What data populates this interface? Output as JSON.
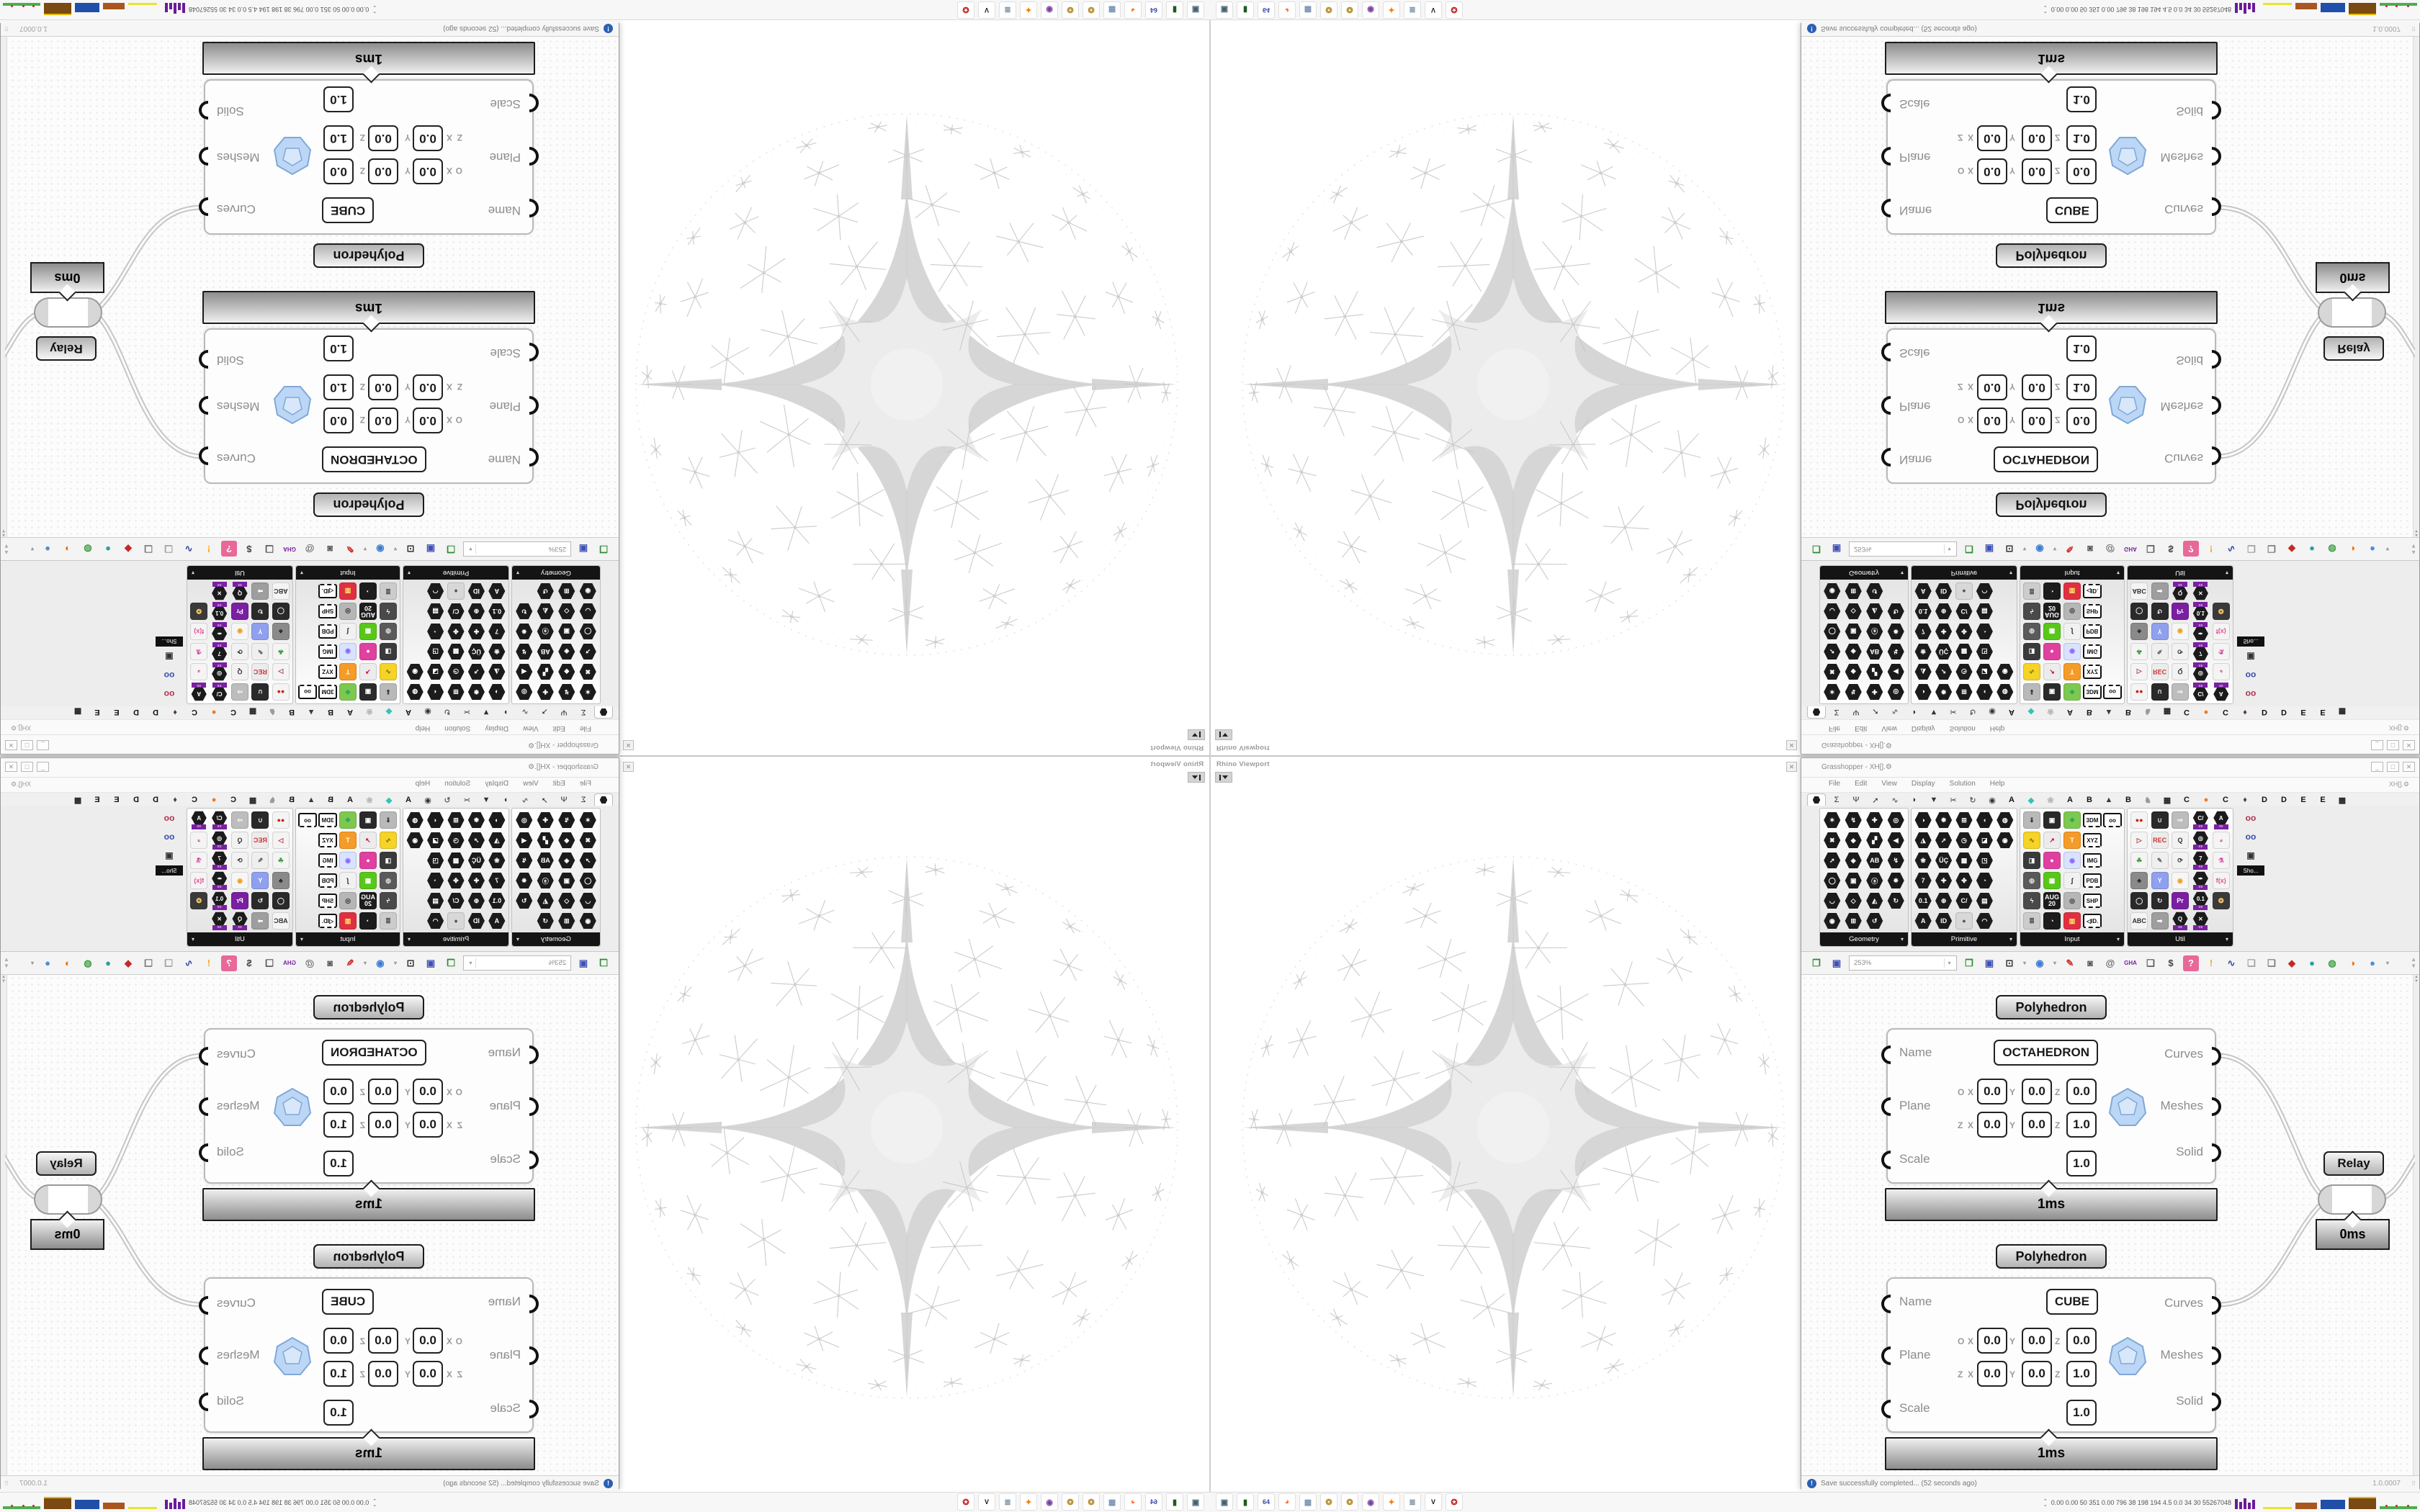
{
  "rhino": {
    "viewport_label": "Rhino Viewport",
    "close_glyph": "✕"
  },
  "gh": {
    "title": "Grasshopper - XH[].⚙",
    "doc_label": "XH[].⚙",
    "menu": [
      "File",
      "Edit",
      "View",
      "Display",
      "Solution",
      "Help"
    ],
    "window_buttons": [
      "_",
      "□",
      "✕"
    ],
    "tabs_icons": [
      "HEX",
      "Σ",
      "Ψ",
      "➚",
      "∿",
      "◗",
      "▼",
      "✂",
      "↻",
      "◉"
    ],
    "tabs_letters": [
      {
        "label": "A",
        "color": "#111111"
      },
      {
        "label": "◆",
        "color": "#35c4b5"
      },
      {
        "label": "❀",
        "color": "#b5b5b5"
      },
      {
        "label": "A",
        "color": "#111111"
      },
      {
        "label": "B",
        "color": "#111111"
      },
      {
        "label": "▲",
        "color": "#3a3a3a"
      },
      {
        "label": "B",
        "color": "#111111"
      },
      {
        "label": "♞",
        "color": "#9a9a9a"
      },
      {
        "label": "▦",
        "color": "#222222"
      },
      {
        "label": "C",
        "color": "#111111"
      },
      {
        "label": "●",
        "color": "#f07820"
      },
      {
        "label": "C",
        "color": "#111111"
      },
      {
        "label": "♦",
        "color": "#5a3b2e"
      },
      {
        "label": "D",
        "color": "#111111"
      },
      {
        "label": "D",
        "color": "#111111"
      },
      {
        "label": "E",
        "color": "#111111"
      },
      {
        "label": "E",
        "color": "#111111"
      },
      {
        "label": "▩",
        "color": "#222222"
      }
    ],
    "zoom_level": "253%",
    "panels": [
      {
        "name": "Geometry",
        "cols": 4,
        "icons": [
          [
            "hex:✶",
            "hex:↯",
            "hex:✚",
            "hex:◎"
          ],
          [
            "hex:✖",
            "hex:◆",
            "hex:▞",
            "hex:◀"
          ],
          [
            "hex:➚",
            "hex:◈",
            "hex:AB",
            "hex:↯"
          ],
          [
            "hex:◯",
            "hex:▣",
            "hex:ⓐ",
            "hex:✵"
          ],
          [
            "hex:◡",
            "hex:◇",
            "hex:◭",
            "hex:↻"
          ],
          [
            "hex:◉",
            "hex:⊞",
            "hex:↺",
            ""
          ]
        ]
      },
      {
        "name": "Primitive",
        "cols": 5,
        "icons": [
          [
            "hex:◑",
            "hex:✹",
            "hex:⊞",
            "hex:◖",
            "hex:◍"
          ],
          [
            "hex:◮",
            "hex:➚",
            "hex:◷",
            "hex:◪",
            "hex:◉"
          ],
          [
            "hex:❀",
            "hex:ÜÇ",
            "hex:▩",
            "hex:◳",
            ""
          ],
          [
            "hex:7",
            "hex:✚",
            "hex:✤",
            "hex:◔",
            ""
          ],
          [
            "hex:0.1",
            "hex:⊕",
            "hex:C/",
            "hex:▤",
            ""
          ],
          [
            "hex:A",
            "hex:ID",
            "sq:●:#d8d8d8:#555",
            "hex:◠",
            ""
          ]
        ]
      },
      {
        "name": "Input",
        "cols": 5,
        "icons": [
          [
            "sq:⇓:#b9b9b9:#222",
            "sq:▣:#2a2a2a:#fff",
            "sq:❖:#7ec850:#22aa66",
            "chip:3DM",
            "chip:oo"
          ],
          [
            "sq:∿:#f5d327:#7a6200",
            "sq:↗:#ececec:#cc0033",
            "sq:T:#f59b27:#fff",
            "chip:XYZ",
            ""
          ],
          [
            "sq:◨:#3a3a3a:#fff",
            "sq:●:#e040a0:#fff",
            "sq:◉:#d9e2ff:#8866ff",
            "chip:IMG",
            ""
          ],
          [
            "sq:◍:#5a5a5a:#ddd",
            "sq:▦:#58c818:#fff",
            "sq:∫:#f1f1f1:#222",
            "chip:PDB",
            ""
          ],
          [
            "sq:ϟ:#4a4a4a:#fff",
            "sq:AUG 20:#1c1c1c:#fff",
            "sq:◎:#b6b6b6:#333",
            "chip:SHP",
            ""
          ],
          [
            "sq:≣:#cccccc:#444",
            "sq:◔:#1c1c1c:#fff",
            "sq:▥:#e03040:#ffee66",
            "chip:◁ID.",
            ""
          ]
        ]
      },
      {
        "name": "Util",
        "cols": 5,
        "icons": [
          [
            "sq:●●:#f4f4f4:#cc2211",
            "sq:∪:#2a2a2a:#eee",
            "sq:⇨:#bdbdbd:#fff",
            "hexp:C/",
            "hexp:A"
          ],
          [
            "sq:▷:#f4f4f4:#b3373c",
            "sq:REC:#ececec:#cc3333",
            "sq:Q:#f2f2f2:#333",
            "hexp:◎",
            "sq:◕:#f4f4f4:#d06a9a"
          ],
          [
            "sq:☘:#f4f4f4:#3a9a3a",
            "sq:✎:#efefef:#666",
            "sq:⟳:#f2f2f2:#333",
            "hexp:7",
            "sq:⚗:#f4f4f4:#d040a0"
          ],
          [
            "sq:♣:#8a8a8a:#222",
            "sq:Y:#8fa0ee:#fff",
            "sq:◉:#f6f6f6:#f0a020",
            "hexp:✒",
            "sq:f(x):#f4f4f4:#e05090"
          ],
          [
            "sq:◯:#2a2a2a:#eee",
            "sq:↻:#2a2a2a:#eee",
            "sq:Pr:#7b1fa2:#fff",
            "hexp:0.1",
            "sq:❂:#3a3a3a:#ffcc66"
          ],
          [
            "sq:ABC:#f4f4f4:#333",
            "sq:➡:#9e9e9e:#fff",
            "hexp:Q",
            "hexp:✕",
            ""
          ]
        ]
      }
    ],
    "show_panel_label": "Sho...",
    "toolbar": [
      {
        "name": "open-file-button",
        "glyph": "❐",
        "color": "#2e8b2e"
      },
      {
        "name": "save-file-button",
        "glyph": "▣",
        "color": "#3f51b5"
      },
      {
        "name": "zoom-extents-button",
        "glyph": "⊡",
        "color": "#333333"
      },
      {
        "name": "caret-1",
        "glyph": "▾",
        "color": "#999999"
      },
      {
        "name": "preview-eye-button",
        "glyph": "◉",
        "color": "#3a7bd5"
      },
      {
        "name": "caret-2",
        "glyph": "▾",
        "color": "#999999"
      },
      {
        "name": "sketch-pen-button",
        "glyph": "✎",
        "color": "#d32f2f"
      },
      {
        "name": "lamp-button",
        "glyph": "◙",
        "color": "#555555"
      },
      {
        "name": "script-at-button",
        "glyph": "@",
        "color": "#666666"
      },
      {
        "name": "gha-assembly-button",
        "glyph": "GHA",
        "color": "#7b1fa2"
      },
      {
        "name": "window-button",
        "glyph": "❏",
        "color": "#555555"
      },
      {
        "name": "find-button",
        "glyph": "$",
        "color": "#444444"
      },
      {
        "name": "help-box-button",
        "glyph": "?",
        "color": "#ffffff",
        "bg": "#e8689a"
      },
      {
        "name": "hint-bulb-button",
        "glyph": "!",
        "color": "#f9a825"
      },
      {
        "name": "wire-display-button",
        "glyph": "∿",
        "color": "#3949ab"
      },
      {
        "name": "cluster-button",
        "glyph": "❑",
        "color": "#9e9e9e"
      },
      {
        "name": "bake-button",
        "glyph": "❑",
        "color": "#777777"
      },
      {
        "name": "gem-button",
        "glyph": "◆",
        "color": "#c62828"
      },
      {
        "name": "ball-teal",
        "glyph": "●",
        "color": "#2aa198"
      },
      {
        "name": "ball-green",
        "glyph": "◍",
        "color": "#43a047"
      },
      {
        "name": "ball-orange",
        "glyph": "◑",
        "color": "#ef6c00"
      },
      {
        "name": "ball-blue",
        "glyph": "●",
        "color": "#4a90d9"
      },
      {
        "name": "caret-3",
        "glyph": "▾",
        "color": "#999999"
      }
    ],
    "status": {
      "message": "Save successfully completed... (52 seconds ago)",
      "icon_glyph": "!",
      "version": "1.0.0007"
    }
  },
  "canvas": {
    "components": [
      {
        "title": "Polyhedron",
        "name_value": "OCTAHEDRON",
        "in_name": "Name",
        "in_plane": "Plane",
        "in_scale": "Scale",
        "out_curves": "Curves",
        "out_meshes": "Meshes",
        "out_solid": "Solid",
        "ax_o": "O",
        "ax_z": "Z",
        "ax_x": "X",
        "ax_y": "Y",
        "ox": "0.0",
        "oy": "0.0",
        "oz": "0.0",
        "zx": "0.0",
        "zy": "0.0",
        "zz": "1.0",
        "scale_value": "1.0",
        "time": "1ms"
      },
      {
        "title": "Polyhedron",
        "name_value": "CUBE",
        "in_name": "Name",
        "in_plane": "Plane",
        "in_scale": "Scale",
        "out_curves": "Curves",
        "out_meshes": "Meshes",
        "out_solid": "Solid",
        "ax_o": "O",
        "ax_z": "Z",
        "ax_x": "X",
        "ax_y": "Y",
        "ox": "0.0",
        "oy": "0.0",
        "oz": "0.0",
        "zx": "0.0",
        "zy": "0.0",
        "zz": "1.0",
        "scale_value": "1.0",
        "time": "1ms"
      }
    ],
    "relay": {
      "label": "Relay",
      "time": "0ms"
    }
  },
  "taskbar": {
    "icons": [
      {
        "name": "system-monitor-icon",
        "glyph": "▣",
        "color": "#44606e"
      },
      {
        "name": "package-app-icon",
        "glyph": "▮",
        "color": "#1d5b1d"
      },
      {
        "name": "disk64-app-icon",
        "glyph": "64",
        "color": "#3949ab"
      },
      {
        "name": "firefox-icon",
        "glyph": "◕",
        "color": "#ff7139"
      },
      {
        "name": "calculator-icon",
        "glyph": "▦",
        "color": "#7a93b4"
      },
      {
        "name": "paint-app-icon",
        "glyph": "❂",
        "color": "#b58b2a"
      },
      {
        "name": "paint-app-2-icon",
        "glyph": "❂",
        "color": "#b58b2a"
      },
      {
        "name": "owl-app-icon",
        "glyph": "◉",
        "color": "#7a3fa0"
      },
      {
        "name": "blender-icon",
        "glyph": "✦",
        "color": "#f57c00"
      },
      {
        "name": "notes-app-icon",
        "glyph": "≣",
        "color": "#7a93a8"
      },
      {
        "name": "gimp-icon",
        "glyph": "V",
        "color": "#141414"
      },
      {
        "name": "red-app-icon",
        "glyph": "✪",
        "color": "#c62828"
      }
    ],
    "stats": "0.00 0.00   50   351  0.00  796   38   198  194  4.5   0.0   34   30  55267048"
  }
}
